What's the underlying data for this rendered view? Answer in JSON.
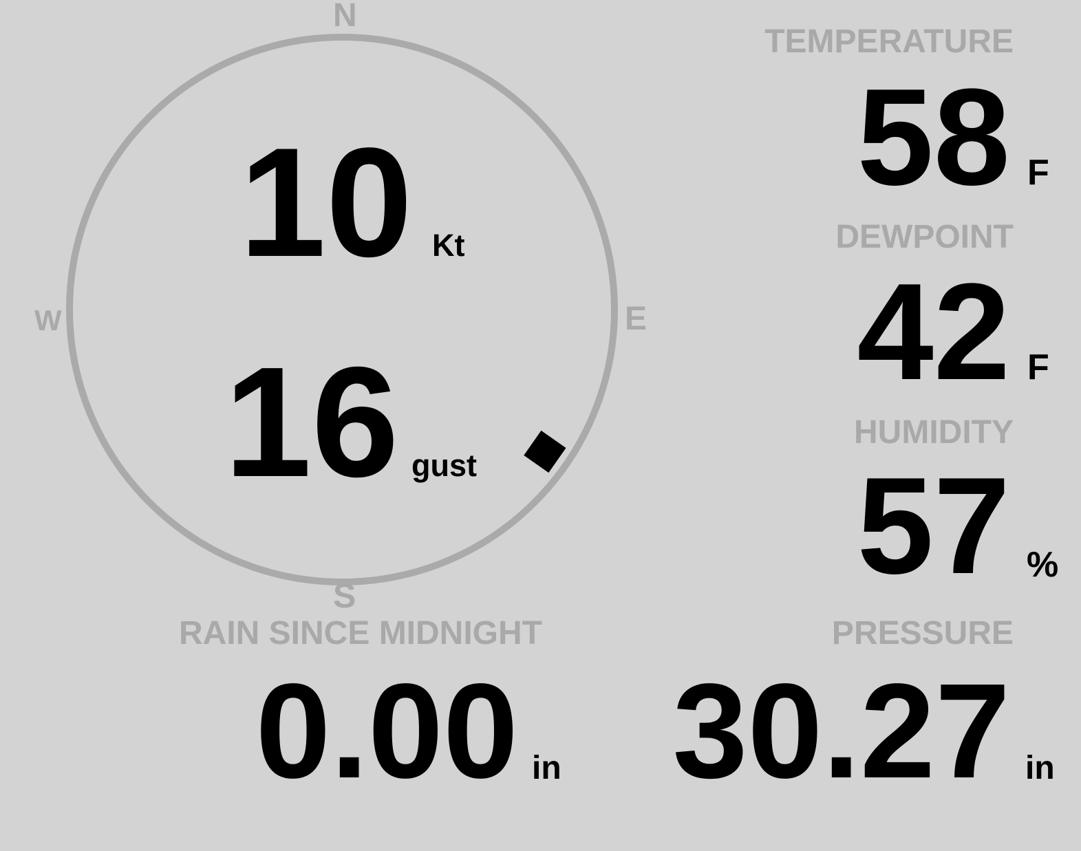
{
  "colors": {
    "background": "#d3d3d3",
    "label": "#a9a9a9",
    "value": "#000000",
    "compass_ring": "#aaaaaa"
  },
  "wind": {
    "compass": {
      "n": "N",
      "e": "E",
      "s": "S",
      "w": "W"
    },
    "direction_deg": 125,
    "speed": "10",
    "speed_unit": "Kt",
    "gust": "16",
    "gust_unit": "gust"
  },
  "temperature": {
    "label": "TEMPERATURE",
    "value": "58",
    "unit": "F"
  },
  "dewpoint": {
    "label": "DEWPOINT",
    "value": "42",
    "unit": "F"
  },
  "humidity": {
    "label": "HUMIDITY",
    "value": "57",
    "unit": "%"
  },
  "pressure": {
    "label": "PRESSURE",
    "value": "30.27",
    "unit": "in"
  },
  "rain": {
    "label": "RAIN SINCE MIDNIGHT",
    "value": "0.00",
    "unit": "in"
  }
}
